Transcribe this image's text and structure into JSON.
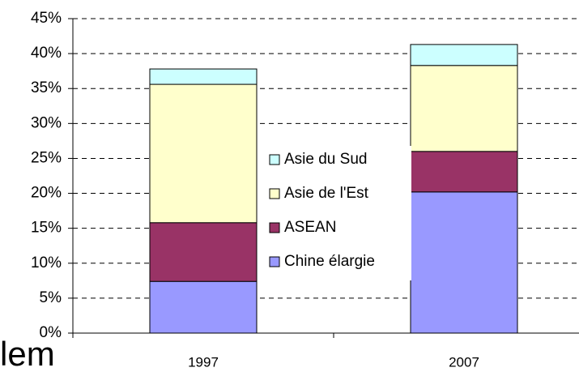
{
  "chart_data": {
    "type": "stacked_bar",
    "categories": [
      "1997",
      "2007"
    ],
    "series": [
      {
        "name": "Chine élargie",
        "color": "#9999ff",
        "values": [
          7.4,
          20.2
        ]
      },
      {
        "name": "ASEAN",
        "color": "#993366",
        "values": [
          8.4,
          5.8
        ]
      },
      {
        "name": "Asie de l'Est",
        "color": "#ffffcc",
        "values": [
          19.8,
          12.3
        ]
      },
      {
        "name": "Asie du Sud",
        "color": "#ccffff",
        "values": [
          2.2,
          3.0
        ]
      }
    ],
    "ylim": [
      0,
      45
    ],
    "yticks": [
      {
        "value": 0,
        "label": "0%"
      },
      {
        "value": 5,
        "label": "5%"
      },
      {
        "value": 10,
        "label": "10%"
      },
      {
        "value": 15,
        "label": "15%"
      },
      {
        "value": 20,
        "label": "20%"
      },
      {
        "value": 25,
        "label": "25%"
      },
      {
        "value": 30,
        "label": "30%"
      },
      {
        "value": 35,
        "label": "35%"
      },
      {
        "value": 40,
        "label": "40%"
      },
      {
        "value": 45,
        "label": "45%"
      }
    ],
    "grid": true,
    "annotation": "lem"
  }
}
